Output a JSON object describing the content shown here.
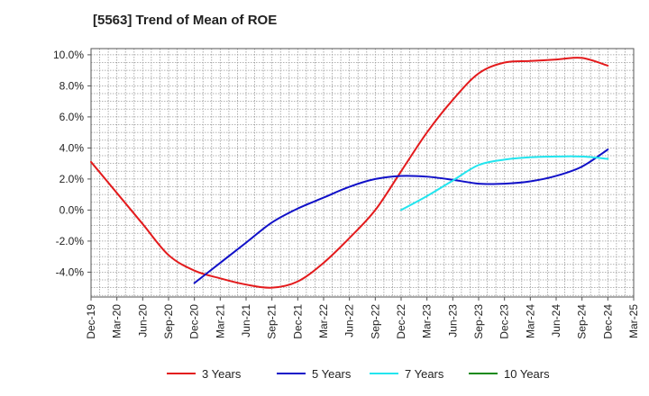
{
  "chart_data": {
    "type": "line",
    "title": "[5563]  Trend of Mean of ROE",
    "xlabel": "",
    "ylabel": "",
    "x_ticks": [
      "Dec-19",
      "Mar-20",
      "Jun-20",
      "Sep-20",
      "Dec-20",
      "Mar-21",
      "Jun-21",
      "Sep-21",
      "Dec-21",
      "Mar-22",
      "Jun-22",
      "Sep-22",
      "Dec-22",
      "Mar-23",
      "Jun-23",
      "Sep-23",
      "Dec-23",
      "Mar-24",
      "Jun-24",
      "Sep-24",
      "Dec-24",
      "Mar-25"
    ],
    "y_ticks": [
      -4,
      -2,
      0,
      2,
      4,
      6,
      8,
      10
    ],
    "y_tick_labels": [
      "-4.0%",
      "-2.0%",
      "0.0%",
      "2.0%",
      "4.0%",
      "6.0%",
      "8.0%",
      "10.0%"
    ],
    "ylim": [
      -5.6,
      10.4
    ],
    "grid": true,
    "legend_position": "bottom",
    "series": [
      {
        "name": "3 Years",
        "color": "#e31a1c",
        "values": [
          3.1,
          1.1,
          -0.9,
          -2.9,
          -3.9,
          -4.4,
          -4.8,
          -5.0,
          -4.6,
          -3.4,
          -1.8,
          0.0,
          2.5,
          5.0,
          7.1,
          8.8,
          9.5,
          9.6,
          9.7,
          9.8,
          9.3
        ]
      },
      {
        "name": "5 Years",
        "color": "#1010c8",
        "values": [
          null,
          null,
          null,
          null,
          -4.7,
          -3.4,
          -2.1,
          -0.8,
          0.1,
          0.8,
          1.5,
          2.0,
          2.2,
          2.15,
          1.95,
          1.7,
          1.7,
          1.85,
          2.2,
          2.8,
          3.9
        ]
      },
      {
        "name": "7 Years",
        "color": "#22e5ee",
        "values": [
          null,
          null,
          null,
          null,
          null,
          null,
          null,
          null,
          null,
          null,
          null,
          null,
          0.0,
          0.9,
          1.9,
          2.9,
          3.25,
          3.4,
          3.45,
          3.45,
          3.3
        ]
      },
      {
        "name": "10 Years",
        "color": "#138a13",
        "values": [
          null,
          null,
          null,
          null,
          null,
          null,
          null,
          null,
          null,
          null,
          null,
          null,
          null,
          null,
          null,
          null,
          null,
          null,
          null,
          null,
          null
        ]
      }
    ]
  }
}
